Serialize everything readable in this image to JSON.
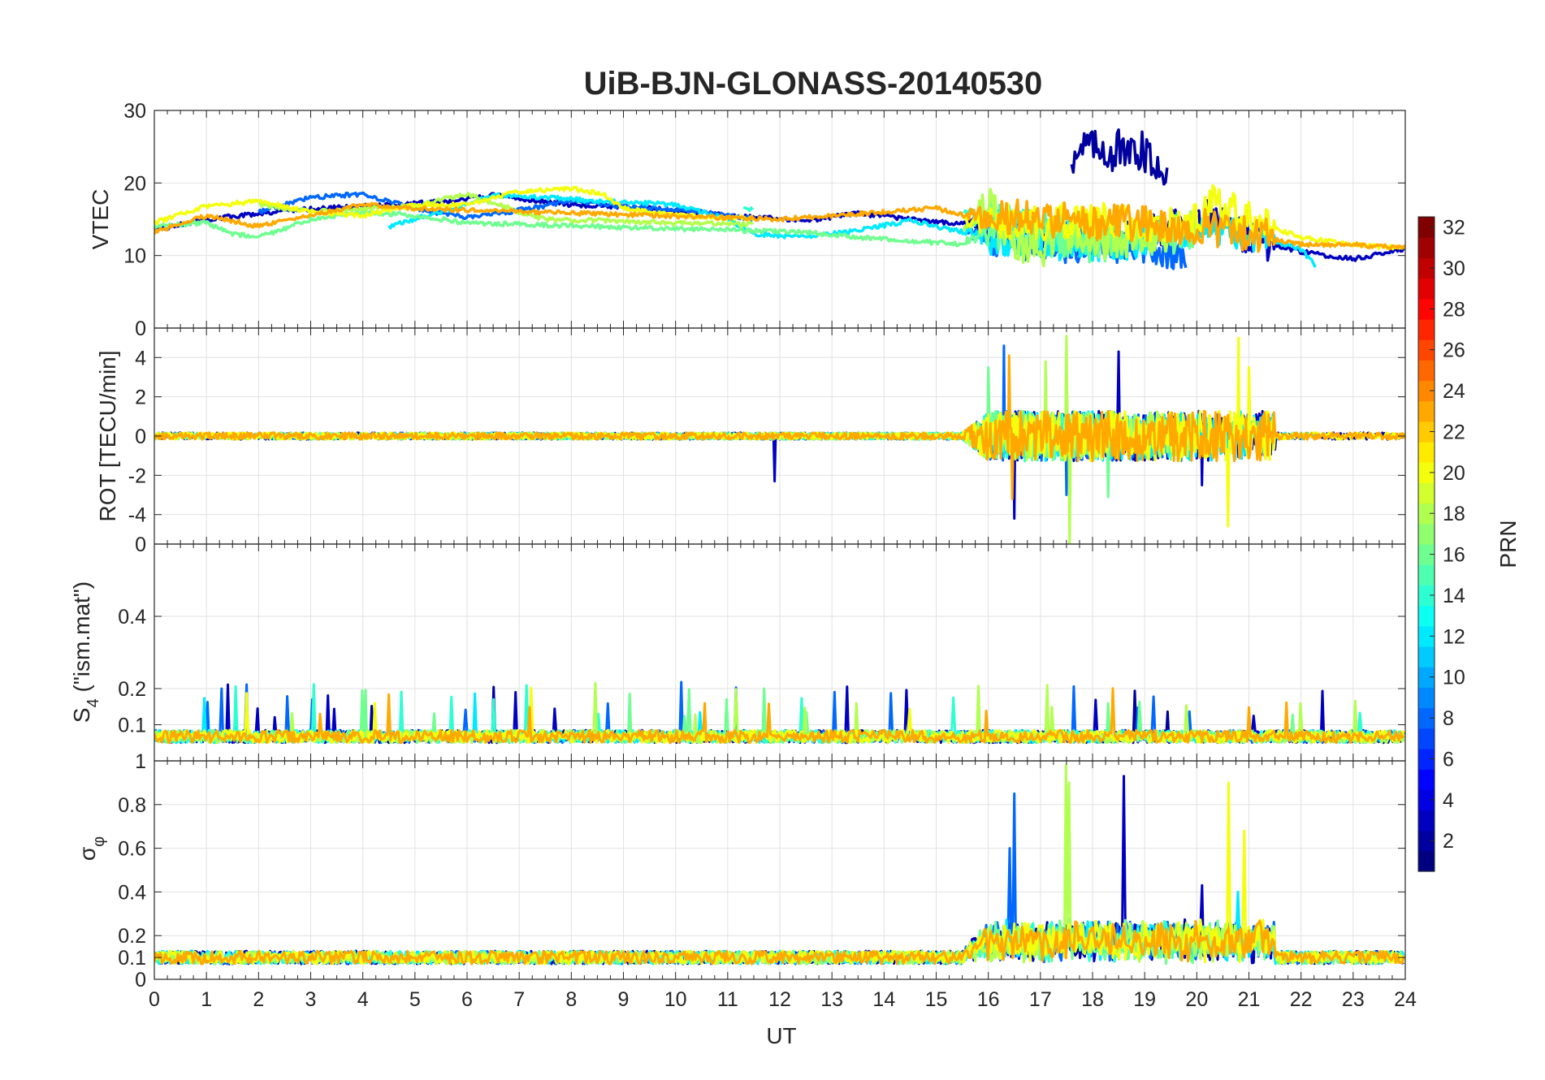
{
  "chart_data": {
    "type": "line",
    "title": "UiB-BJN-GLONASS-20140530",
    "xlabel": "UT",
    "xlim": [
      0,
      24
    ],
    "x_ticks": [
      "0",
      "1",
      "2",
      "3",
      "4",
      "5",
      "6",
      "7",
      "8",
      "9",
      "10",
      "11",
      "12",
      "13",
      "14",
      "15",
      "16",
      "17",
      "18",
      "19",
      "20",
      "21",
      "22",
      "23",
      "24"
    ],
    "grid": true,
    "panels": [
      {
        "id": "vtec",
        "ylabel": "VTEC",
        "ylim": [
          0,
          30
        ],
        "y_ticks": [
          0,
          10,
          20,
          30
        ]
      },
      {
        "id": "rot",
        "ylabel": "ROT [TECU/min]",
        "ylim": [
          -5.5,
          5.5
        ],
        "y_ticks": [
          -4,
          -2,
          0,
          2,
          4
        ]
      },
      {
        "id": "s4",
        "ylabel_main": "S",
        "ylabel_sub": "4",
        "ylabel_rest": " (\"ism.mat\")",
        "ylim": [
          0,
          0.6
        ],
        "y_ticks": [
          0.1,
          0.2,
          0.4
        ],
        "y_tick_labels": [
          "0.1",
          "0.2",
          "0.4"
        ],
        "top_tick_label": "0"
      },
      {
        "id": "sigma",
        "ylabel_main": "σ",
        "ylabel_sub": "φ",
        "ylim": [
          0,
          1
        ],
        "y_ticks": [
          0,
          0.1,
          0.2,
          0.4,
          0.6,
          0.8
        ],
        "y_tick_labels": [
          "0",
          "0.1",
          "0.2",
          "0.4",
          "0.6",
          "0.8"
        ],
        "top_tick_label": "1"
      }
    ],
    "colorbar": {
      "label": "PRN",
      "range": [
        1,
        32
      ],
      "ticks": [
        "2",
        "4",
        "6",
        "8",
        "10",
        "12",
        "14",
        "16",
        "18",
        "20",
        "22",
        "24",
        "26",
        "28",
        "30",
        "32"
      ],
      "colormap": "jet"
    },
    "series": [
      {
        "prn": 2,
        "vtec": [
          [
            17.6,
            23.5
          ],
          [
            17.75,
            24.8
          ],
          [
            17.9,
            25.5
          ],
          [
            18.05,
            24.6
          ],
          [
            18.2,
            25.2
          ],
          [
            18.35,
            23.8
          ],
          [
            18.5,
            24.9
          ],
          [
            18.65,
            23.5
          ],
          [
            18.8,
            23.9
          ],
          [
            18.95,
            24.6
          ],
          [
            19.1,
            23.1
          ],
          [
            19.25,
            22.4
          ],
          [
            19.45,
            22.1
          ]
        ]
      },
      {
        "prn": 3,
        "vtec": [
          [
            0.0,
            13.5
          ],
          [
            1.0,
            15.0
          ],
          [
            2.5,
            16.2
          ],
          [
            4.0,
            16.8
          ],
          [
            5.5,
            17.4
          ],
          [
            6.5,
            18.3
          ],
          [
            8.0,
            17.0
          ],
          [
            9.5,
            16.5
          ],
          [
            11.0,
            15.5
          ],
          [
            12.5,
            14.8
          ],
          [
            13.5,
            15.8
          ],
          [
            14.5,
            15.0
          ],
          [
            16.0,
            14.0
          ],
          [
            17.0,
            13.0
          ],
          [
            18.0,
            12.5
          ],
          [
            19.0,
            13.2
          ],
          [
            20.0,
            14.8
          ],
          [
            20.3,
            15.5
          ],
          [
            21.0,
            12.5
          ],
          [
            22.0,
            10.5
          ],
          [
            23.0,
            9.5
          ],
          [
            24.0,
            11.0
          ]
        ]
      },
      {
        "prn": 8,
        "vtec": [
          [
            2.0,
            16.0
          ],
          [
            3.0,
            18.0
          ],
          [
            4.0,
            18.5
          ],
          [
            5.0,
            16.5
          ],
          [
            6.0,
            15.2
          ],
          [
            6.8,
            16.0
          ],
          [
            8.0,
            17.5
          ],
          [
            9.0,
            16.8
          ],
          [
            10.5,
            16.0
          ],
          [
            11.5,
            15.0
          ],
          [
            12.5,
            16.8
          ],
          [
            14.0,
            17.5
          ],
          [
            15.0,
            16.0
          ],
          [
            16.0,
            12.5
          ],
          [
            17.0,
            11.2
          ],
          [
            18.0,
            11.8
          ],
          [
            19.0,
            10.8
          ],
          [
            19.8,
            10.6
          ]
        ]
      },
      {
        "prn": 12,
        "vtec": [
          [
            4.5,
            14.0
          ],
          [
            5.5,
            16.0
          ],
          [
            6.5,
            18.3
          ],
          [
            7.5,
            18.0
          ],
          [
            8.5,
            17.5
          ],
          [
            10.0,
            17.0
          ],
          [
            11.0,
            15.0
          ],
          [
            11.5,
            13.0
          ],
          [
            12.5,
            12.5
          ],
          [
            13.5,
            13.5
          ],
          [
            14.5,
            14.8
          ],
          [
            16.0,
            12.5
          ],
          [
            18.0,
            11.0
          ],
          [
            20.0,
            14.0
          ],
          [
            21.0,
            13.0
          ],
          [
            22.0,
            10.8
          ],
          [
            22.3,
            8.5
          ]
        ]
      },
      {
        "prn": 14,
        "vtec": [
          [
            11.3,
            16.5
          ],
          [
            12.0,
            16.2
          ],
          [
            13.0,
            17.0
          ],
          [
            14.0,
            17.5
          ],
          [
            15.0,
            16.5
          ],
          [
            16.0,
            15.0
          ],
          [
            17.0,
            13.5
          ],
          [
            18.0,
            12.5
          ]
        ]
      },
      {
        "prn": 16,
        "vtec": [
          [
            0.0,
            14.0
          ],
          [
            1.0,
            14.5
          ],
          [
            1.5,
            13.0
          ],
          [
            2.0,
            12.5
          ],
          [
            3.0,
            15.0
          ],
          [
            4.0,
            16.0
          ],
          [
            5.0,
            15.5
          ],
          [
            6.0,
            14.5
          ],
          [
            12.5,
            13.2
          ],
          [
            13.5,
            12.5
          ],
          [
            14.5,
            12.0
          ],
          [
            15.5,
            11.5
          ],
          [
            16.0,
            13.0
          ],
          [
            17.0,
            12.5
          ],
          [
            18.0,
            11.5
          ],
          [
            19.0,
            12.0
          ],
          [
            20.0,
            13.5
          ]
        ]
      },
      {
        "prn": 18,
        "vtec": [
          [
            2.0,
            17.0
          ],
          [
            3.0,
            16.0
          ],
          [
            4.0,
            16.5
          ],
          [
            5.0,
            16.8
          ],
          [
            6.0,
            18.5
          ],
          [
            7.0,
            16.0
          ],
          [
            7.5,
            15.0
          ],
          [
            15.5,
            13.5
          ],
          [
            16.0,
            17.5
          ],
          [
            16.5,
            12.0
          ],
          [
            17.0,
            10.5
          ],
          [
            17.5,
            13.5
          ],
          [
            18.0,
            11.5
          ],
          [
            19.0,
            12.5
          ],
          [
            20.0,
            13.8
          ]
        ]
      },
      {
        "prn": 20,
        "vtec": [
          [
            0.0,
            14.5
          ],
          [
            1.0,
            16.8
          ],
          [
            2.0,
            17.5
          ],
          [
            3.0,
            16.0
          ],
          [
            4.0,
            15.5
          ],
          [
            5.0,
            17.0
          ],
          [
            6.0,
            17.0
          ],
          [
            7.0,
            18.8
          ],
          [
            8.0,
            19.2
          ],
          [
            8.6,
            18.5
          ],
          [
            9.0,
            16.5
          ],
          [
            10.0,
            15.5
          ],
          [
            11.0,
            15.2
          ],
          [
            20.0,
            14.5
          ],
          [
            20.3,
            17.5
          ],
          [
            21.0,
            15.0
          ],
          [
            22.0,
            12.5
          ],
          [
            23.0,
            11.5
          ],
          [
            24.0,
            11.0
          ]
        ]
      },
      {
        "prn": 23,
        "vtec": [
          [
            0.0,
            13.2
          ],
          [
            1.0,
            15.5
          ],
          [
            2.0,
            14.0
          ],
          [
            3.0,
            15.5
          ],
          [
            4.0,
            17.0
          ],
          [
            5.0,
            16.5
          ],
          [
            12.0,
            15.0
          ],
          [
            13.0,
            15.5
          ],
          [
            14.0,
            16.0
          ],
          [
            15.0,
            16.5
          ],
          [
            15.6,
            15.5
          ],
          [
            20.0,
            14.0
          ],
          [
            21.0,
            13.0
          ],
          [
            22.0,
            11.5
          ],
          [
            23.0,
            11.5
          ],
          [
            24.0,
            11.0
          ]
        ]
      }
    ]
  }
}
